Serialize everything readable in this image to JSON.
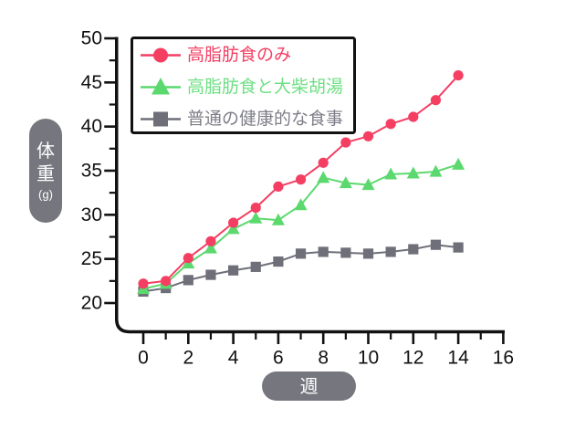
{
  "chart_data": {
    "type": "line",
    "title": "",
    "xlabel": "週",
    "ylabel": "体重",
    "ylabel_unit": "(g)",
    "xlim": [
      0,
      16
    ],
    "ylim": [
      20,
      50
    ],
    "x_major_ticks": [
      0,
      2,
      4,
      6,
      8,
      10,
      12,
      14,
      16
    ],
    "x_minor_ticks": [
      1,
      3,
      5,
      7,
      9,
      11,
      13,
      15
    ],
    "y_major_ticks": [
      20,
      25,
      30,
      35,
      40,
      45,
      50
    ],
    "y_minor_ticks": [
      22.5,
      27.5,
      32.5,
      37.5,
      42.5,
      47.5
    ],
    "grid": false,
    "legend_position": "top-left",
    "x": [
      0,
      1,
      2,
      3,
      4,
      5,
      6,
      7,
      8,
      9,
      10,
      11,
      12,
      13,
      14
    ],
    "series": [
      {
        "name": "高脂肪食のみ",
        "marker": "circle",
        "color": "#f43f63",
        "label_color": "#f43f63",
        "values": [
          22.2,
          22.5,
          25.1,
          27.0,
          29.1,
          30.8,
          33.2,
          34.0,
          35.9,
          38.2,
          38.9,
          40.3,
          41.1,
          43.0,
          45.8
        ]
      },
      {
        "name": "高脂肪食と大柴胡湯",
        "marker": "triangle",
        "color": "#5cd96e",
        "label_color": "#6ee083",
        "values": [
          21.6,
          22.2,
          24.5,
          26.2,
          28.4,
          29.6,
          29.4,
          31.1,
          34.2,
          33.6,
          33.4,
          34.6,
          34.7,
          34.9,
          35.7
        ]
      },
      {
        "name": "普通の健康的な食事",
        "marker": "square",
        "color": "#6f6f7a",
        "label_color": "#7e7e88",
        "values": [
          21.3,
          21.7,
          22.6,
          23.2,
          23.7,
          24.1,
          24.7,
          25.6,
          25.8,
          25.7,
          25.6,
          25.8,
          26.1,
          26.6,
          26.3
        ]
      }
    ],
    "colors": {
      "axis": "#111111",
      "tick_label": "#111111",
      "pill_background": "#76767f",
      "pill_text": "#ffffff",
      "legend_border": "#111111",
      "legend_background": "#ffffff",
      "page_background": "#ffffff"
    }
  }
}
